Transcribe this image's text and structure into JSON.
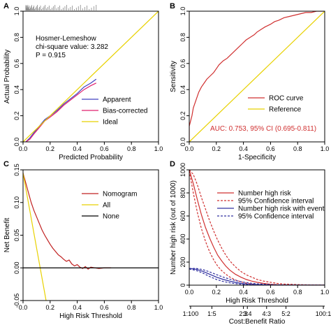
{
  "chart_data": [
    {
      "panel": "A",
      "type": "line",
      "xlabel": "Predicted Probability",
      "ylabel": "Actual Probability",
      "xlim": [
        0,
        1
      ],
      "ylim": [
        0,
        1
      ],
      "x_ticks": [
        "0.0",
        "0.2",
        "0.4",
        "0.6",
        "0.8",
        "1.0"
      ],
      "y_ticks": [
        "0.0",
        "0.2",
        "0.4",
        "0.6",
        "0.8",
        "1.0"
      ],
      "annotation": [
        "Hosmer-Lemeshow",
        "chi-square value: 3.282",
        "P = 0.915"
      ],
      "legend_position": "bottom-right",
      "series": [
        {
          "name": "Apparent",
          "color": "#4040c0",
          "x": [
            0.02,
            0.05,
            0.08,
            0.12,
            0.16,
            0.2,
            0.25,
            0.3,
            0.35,
            0.4,
            0.45,
            0.5,
            0.54
          ],
          "y": [
            0.0,
            0.03,
            0.07,
            0.12,
            0.17,
            0.2,
            0.24,
            0.29,
            0.33,
            0.37,
            0.42,
            0.45,
            0.48
          ]
        },
        {
          "name": "Bias-corrected",
          "color": "#e0206e",
          "x": [
            0.02,
            0.05,
            0.08,
            0.12,
            0.16,
            0.2,
            0.25,
            0.3,
            0.35,
            0.4,
            0.45,
            0.5,
            0.54
          ],
          "y": [
            0.0,
            0.02,
            0.06,
            0.11,
            0.16,
            0.19,
            0.23,
            0.28,
            0.32,
            0.36,
            0.4,
            0.43,
            0.45
          ]
        },
        {
          "name": "Ideal",
          "color": "#e8d100",
          "x": [
            0,
            1
          ],
          "y": [
            0,
            1
          ]
        }
      ],
      "rug_x_range": [
        0.02,
        0.54
      ]
    },
    {
      "panel": "B",
      "type": "line",
      "xlabel": "1-Specificity",
      "ylabel": "Sensitivity",
      "xlim": [
        0,
        1
      ],
      "ylim": [
        0,
        1
      ],
      "x_ticks": [
        "0.0",
        "0.2",
        "0.4",
        "0.6",
        "0.8",
        "1.0"
      ],
      "y_ticks": [
        "0.0",
        "0.2",
        "0.4",
        "0.6",
        "0.8",
        "1.0"
      ],
      "annotation": "AUC: 0.753, 95% CI (0.695-0.811)",
      "annotation_color": "#d03030",
      "legend_position": "bottom-right",
      "series": [
        {
          "name": "ROC curve",
          "color": "#d03030",
          "x": [
            0,
            0.0,
            0.02,
            0.03,
            0.05,
            0.07,
            0.09,
            0.11,
            0.13,
            0.15,
            0.18,
            0.2,
            0.22,
            0.25,
            0.28,
            0.3,
            0.33,
            0.36,
            0.39,
            0.42,
            0.45,
            0.48,
            0.5,
            0.53,
            0.56,
            0.6,
            0.63,
            0.66,
            0.7,
            0.74,
            0.78,
            0.82,
            0.86,
            0.9,
            0.94,
            0.97,
            1.0
          ],
          "y": [
            0,
            0.12,
            0.2,
            0.26,
            0.32,
            0.38,
            0.42,
            0.45,
            0.48,
            0.5,
            0.53,
            0.56,
            0.59,
            0.62,
            0.64,
            0.66,
            0.69,
            0.72,
            0.75,
            0.78,
            0.8,
            0.82,
            0.84,
            0.86,
            0.88,
            0.9,
            0.92,
            0.93,
            0.95,
            0.96,
            0.97,
            0.98,
            0.99,
            0.99,
            1.0,
            1.0,
            1.0
          ]
        },
        {
          "name": "Reference",
          "color": "#e8d100",
          "x": [
            0,
            1
          ],
          "y": [
            0,
            1
          ]
        }
      ]
    },
    {
      "panel": "C",
      "type": "line",
      "xlabel": "High Risk Threshold",
      "ylabel": "Net Benefit",
      "xlim": [
        0,
        1
      ],
      "ylim": [
        -0.05,
        0.15
      ],
      "x_ticks": [
        "0.0",
        "0.2",
        "0.4",
        "0.6",
        "0.8",
        "1.0"
      ],
      "y_ticks": [
        "-0.05",
        "0.00",
        "0.05",
        "0.10",
        "0.15"
      ],
      "legend_position": "top-right",
      "series": [
        {
          "name": "Nomogram",
          "color": "#c02020",
          "x": [
            0.0,
            0.02,
            0.04,
            0.06,
            0.08,
            0.1,
            0.12,
            0.14,
            0.16,
            0.18,
            0.2,
            0.22,
            0.24,
            0.26,
            0.28,
            0.3,
            0.32,
            0.34,
            0.36,
            0.38,
            0.4,
            0.42,
            0.44,
            0.46,
            0.48,
            0.5,
            0.53,
            0.56,
            0.6,
            0.63,
            0.65
          ],
          "y": [
            0.145,
            0.13,
            0.115,
            0.1,
            0.088,
            0.078,
            0.068,
            0.058,
            0.05,
            0.043,
            0.036,
            0.03,
            0.025,
            0.02,
            0.017,
            0.013,
            0.01,
            0.012,
            0.006,
            0.003,
            0.005,
            0.001,
            -0.001,
            0.002,
            -0.002,
            0.001,
            0.0,
            -0.001,
            0.0,
            0.0,
            0.0
          ]
        },
        {
          "name": "All",
          "color": "#e8d100",
          "x": [
            0.0,
            0.17
          ],
          "y": [
            0.145,
            -0.05
          ]
        },
        {
          "name": "None",
          "color": "#000000",
          "x": [
            0,
            1
          ],
          "y": [
            0,
            0
          ]
        }
      ]
    },
    {
      "panel": "D",
      "type": "line",
      "xlabel": "High Risk Threshold",
      "ylabel": "Number high risk (out of 1000)",
      "x2label": "Cost:Benefit Ratio",
      "xlim": [
        0,
        1
      ],
      "ylim": [
        0,
        1000
      ],
      "x_ticks": [
        "0.0",
        "0.2",
        "0.4",
        "0.6",
        "0.8",
        "1.0"
      ],
      "y_ticks": [
        "0",
        "200",
        "400",
        "600",
        "800",
        "1000"
      ],
      "x2_ticks": [
        "1:100",
        "1:5",
        "2:3",
        "3:4",
        "4:3",
        "5:2",
        "100:1"
      ],
      "x2_tick_positions": [
        0.01,
        0.167,
        0.4,
        0.429,
        0.571,
        0.714,
        0.99
      ],
      "legend_position": "top-right",
      "series": [
        {
          "name": "Number high risk",
          "color": "#d03030",
          "dash": "solid",
          "x": [
            0.0,
            0.03,
            0.06,
            0.09,
            0.12,
            0.15,
            0.18,
            0.21,
            0.24,
            0.27,
            0.3,
            0.34,
            0.38,
            0.42,
            0.46,
            0.5,
            0.55,
            0.6,
            0.65,
            0.7,
            0.8,
            0.9,
            1.0
          ],
          "y": [
            1000,
            880,
            740,
            610,
            500,
            410,
            330,
            260,
            210,
            165,
            130,
            95,
            70,
            50,
            35,
            25,
            15,
            8,
            4,
            2,
            0,
            0,
            0
          ]
        },
        {
          "name": "95% Confidence interval",
          "color": "#d03030",
          "dash": "dashed",
          "x": [
            0.0,
            0.03,
            0.06,
            0.09,
            0.12,
            0.15,
            0.18,
            0.21,
            0.24,
            0.27,
            0.3,
            0.34,
            0.38,
            0.42,
            0.46,
            0.5,
            0.55,
            0.6,
            0.65,
            0.7,
            0.8,
            0.9,
            1.0
          ],
          "y": [
            1000,
            960,
            870,
            760,
            660,
            560,
            470,
            390,
            320,
            260,
            210,
            160,
            120,
            90,
            70,
            50,
            35,
            25,
            15,
            10,
            5,
            2,
            0
          ]
        },
        {
          "name": "",
          "color": "#d03030",
          "dash": "dashed",
          "x": [
            0.0,
            0.03,
            0.06,
            0.09,
            0.12,
            0.15,
            0.18,
            0.21,
            0.24,
            0.27,
            0.3,
            0.34,
            0.38,
            0.42,
            0.46,
            0.5,
            0.55,
            0.6,
            0.65,
            0.7,
            0.8,
            0.9,
            1.0
          ],
          "y": [
            990,
            800,
            630,
            490,
            380,
            290,
            220,
            165,
            125,
            95,
            70,
            45,
            30,
            18,
            10,
            5,
            2,
            0,
            0,
            0,
            0,
            0,
            0
          ]
        },
        {
          "name": "Number high risk with event",
          "color": "#3030a0",
          "dash": "solid",
          "x": [
            0.0,
            0.05,
            0.1,
            0.15,
            0.2,
            0.25,
            0.3,
            0.35,
            0.4,
            0.45,
            0.5,
            0.6,
            0.7,
            0.8,
            1.0
          ],
          "y": [
            145,
            138,
            120,
            95,
            70,
            50,
            35,
            22,
            13,
            8,
            5,
            1,
            0,
            0,
            0
          ]
        },
        {
          "name": "95% Confidence interval",
          "color": "#3030a0",
          "dash": "dashed",
          "x": [
            0.0,
            0.05,
            0.1,
            0.15,
            0.2,
            0.25,
            0.3,
            0.35,
            0.4,
            0.45,
            0.5,
            0.6,
            0.7,
            0.8,
            1.0
          ],
          "y": [
            145,
            145,
            135,
            115,
            92,
            70,
            52,
            38,
            26,
            18,
            12,
            5,
            2,
            0,
            0
          ]
        },
        {
          "name": "",
          "color": "#3030a0",
          "dash": "dashed",
          "x": [
            0.0,
            0.05,
            0.1,
            0.15,
            0.2,
            0.25,
            0.3,
            0.35,
            0.4,
            0.45,
            0.5,
            0.6,
            0.7,
            0.8,
            1.0
          ],
          "y": [
            140,
            128,
            105,
            75,
            50,
            32,
            20,
            12,
            6,
            3,
            1,
            0,
            0,
            0,
            0
          ]
        }
      ]
    }
  ]
}
